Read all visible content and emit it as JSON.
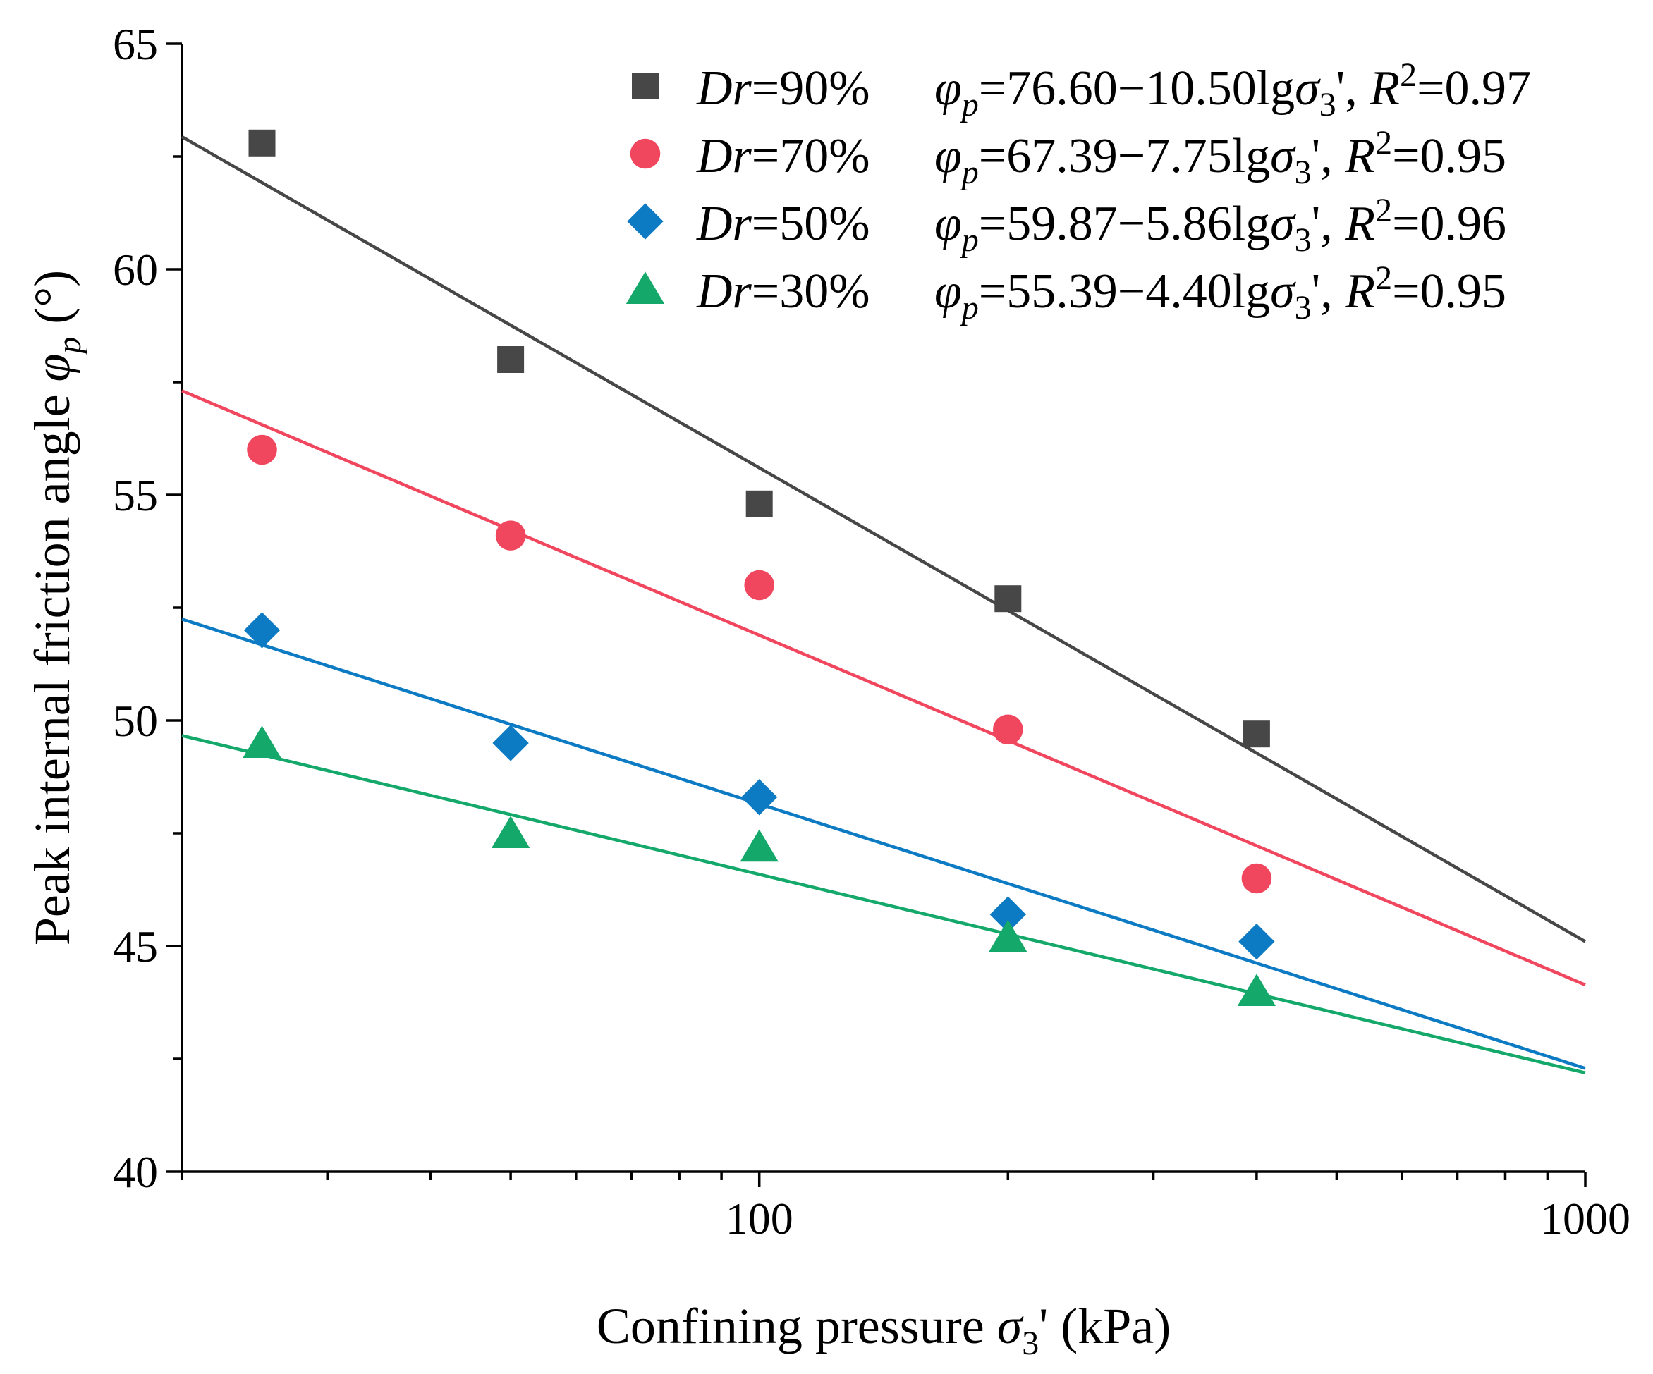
{
  "chart_data": {
    "type": "scatter",
    "xscale": "log",
    "xlim": [
      20,
      1000
    ],
    "ylim": [
      40,
      65
    ],
    "xlabel_text": "Confining pressure ",
    "xlabel_symbol": "σ",
    "xlabel_sub": "3",
    "xlabel_unit": "'  (kPa)",
    "ylabel_text": "Peak internal friction angle ",
    "ylabel_symbol": "φ",
    "ylabel_sub": "p",
    "ylabel_unit": " (°)",
    "x_tick_labels": [
      "100",
      "1000"
    ],
    "y_tick_labels": [
      "40",
      "45",
      "50",
      "55",
      "60",
      "65"
    ],
    "series": [
      {
        "name": "Dr=90%",
        "label_var": "Dr",
        "label_val": "=90%",
        "marker": "square",
        "color": "#474747",
        "x": [
          25,
          50,
          100,
          200,
          400
        ],
        "y": [
          62.8,
          58.0,
          54.8,
          52.7,
          49.7
        ],
        "fit": {
          "a": 76.6,
          "b": 10.5
        },
        "eq_value": "=76.60−10.50lg",
        "r2_value": "=0.97"
      },
      {
        "name": "Dr=70%",
        "label_var": "Dr",
        "label_val": "=70%",
        "marker": "circle",
        "color": "#f0475f",
        "x": [
          25,
          50,
          100,
          200,
          400
        ],
        "y": [
          56.0,
          54.1,
          53.0,
          49.8,
          46.5
        ],
        "fit": {
          "a": 67.39,
          "b": 7.75
        },
        "eq_value": "=67.39−7.75lg",
        "r2_value": "=0.95"
      },
      {
        "name": "Dr=50%",
        "label_var": "Dr",
        "label_val": "=50%",
        "marker": "diamond",
        "color": "#0c7bc3",
        "x": [
          25,
          50,
          100,
          200,
          400
        ],
        "y": [
          52.0,
          49.5,
          48.3,
          45.7,
          45.1
        ],
        "fit": {
          "a": 59.87,
          "b": 5.86
        },
        "eq_value": "=59.87−5.86lg",
        "r2_value": "=0.96"
      },
      {
        "name": "Dr=30%",
        "label_var": "Dr",
        "label_val": "=30%",
        "marker": "triangle",
        "color": "#14a86a",
        "x": [
          25,
          50,
          100,
          200,
          400
        ],
        "y": [
          49.5,
          47.5,
          47.2,
          45.2,
          44.0
        ],
        "fit": {
          "a": 55.39,
          "b": 4.4
        },
        "eq_value": "=55.39−4.40lg",
        "r2_value": "=0.95"
      }
    ],
    "equation_parts": {
      "phi": "φ",
      "phi_sub": "p",
      "sigma": "σ",
      "sigma_sub": "3",
      "prime": "', ",
      "r": "R",
      "r_sup": "2"
    },
    "legend_position": "top-right",
    "grid": false
  }
}
